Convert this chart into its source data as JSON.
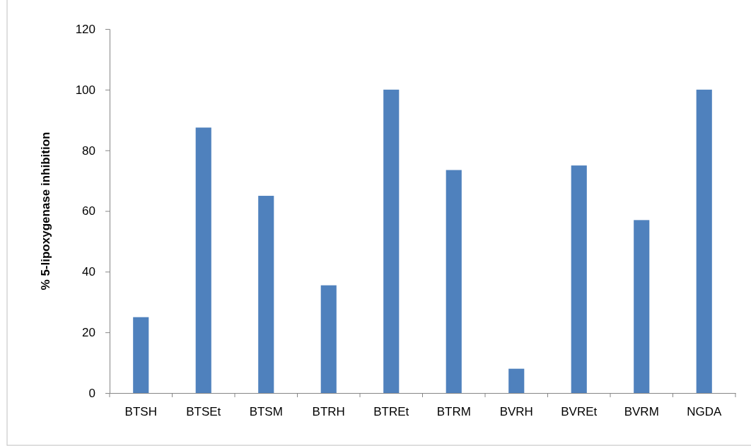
{
  "chart_data": {
    "type": "bar",
    "ylabel": "% 5-lipoxygenase inhibition",
    "categories": [
      "BTSH",
      "BTSEt",
      "BTSM",
      "BTRH",
      "BTREt",
      "BTRM",
      "BVRH",
      "BVREt",
      "BVRM",
      "NGDA"
    ],
    "values": [
      25,
      87.5,
      65,
      35.5,
      100,
      73.5,
      8,
      75,
      57,
      100
    ],
    "color": "#4f81bd",
    "ylim": [
      0,
      120
    ],
    "yticks": [
      0,
      20,
      40,
      60,
      80,
      100,
      120
    ],
    "grid": false
  }
}
